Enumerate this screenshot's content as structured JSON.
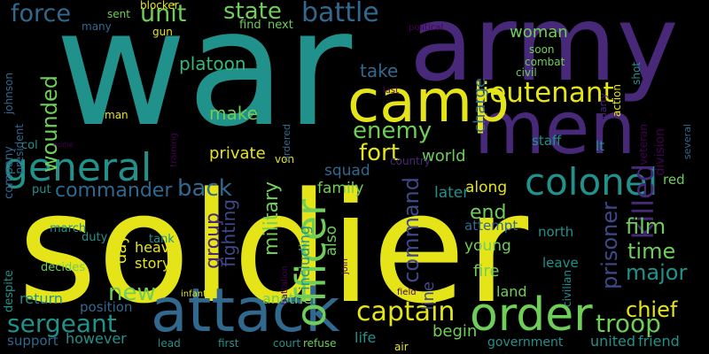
{
  "palette": {
    "yellow": "#e5e419",
    "teal": "#21918c",
    "purple": "#482878",
    "blue": "#31688e",
    "green": "#35b779",
    "lime": "#6ece58",
    "indigo": "#3e4989",
    "dark": "#440154"
  },
  "words": [
    {
      "text": "soldier",
      "color": "#e5e419"
    },
    {
      "text": "war",
      "color": "#21918c"
    },
    {
      "text": "army",
      "color": "#482878"
    },
    {
      "text": "men",
      "color": "#482878"
    },
    {
      "text": "camp",
      "color": "#e5e419"
    },
    {
      "text": "attack",
      "color": "#31688e"
    },
    {
      "text": "order",
      "color": "#6ece58"
    },
    {
      "text": "general",
      "color": "#21918c"
    },
    {
      "text": "officer",
      "color": "#6ece58"
    },
    {
      "text": "colonel",
      "color": "#21918c"
    },
    {
      "text": "lieutenant",
      "color": "#e5e419"
    },
    {
      "text": "killed",
      "color": "#482878"
    },
    {
      "text": "captain",
      "color": "#e5e419"
    },
    {
      "text": "troop",
      "color": "#6ece58"
    },
    {
      "text": "sergeant",
      "color": "#21918c"
    },
    {
      "text": "battle",
      "color": "#31688e"
    },
    {
      "text": "state",
      "color": "#6ece58"
    },
    {
      "text": "force",
      "color": "#31688e"
    },
    {
      "text": "unit",
      "color": "#6ece58"
    },
    {
      "text": "commander",
      "color": "#31688e"
    },
    {
      "text": "back",
      "color": "#31688e"
    },
    {
      "text": "enemy",
      "color": "#6ece58"
    },
    {
      "text": "fort",
      "color": "#e5e419"
    },
    {
      "text": "chief",
      "color": "#e5e419"
    },
    {
      "text": "major",
      "color": "#21918c"
    },
    {
      "text": "prisoner",
      "color": "#3e4989"
    },
    {
      "text": "command",
      "color": "#3e4989"
    },
    {
      "text": "military",
      "color": "#6ece58"
    },
    {
      "text": "group",
      "color": "#482878"
    },
    {
      "text": "fighting",
      "color": "#3e4989"
    },
    {
      "text": "film",
      "color": "#6ece58"
    },
    {
      "text": "time",
      "color": "#6ece58"
    },
    {
      "text": "end",
      "color": "#6ece58"
    },
    {
      "text": "new",
      "color": "#6ece58"
    },
    {
      "text": "wounded",
      "color": "#6ece58"
    },
    {
      "text": "platoon",
      "color": "#35b779"
    },
    {
      "text": "make",
      "color": "#6ece58"
    },
    {
      "text": "take",
      "color": "#31688e"
    },
    {
      "text": "private",
      "color": "#e5e419"
    },
    {
      "text": "woman",
      "color": "#6ece58"
    },
    {
      "text": "charge",
      "color": "#31688e"
    },
    {
      "text": "world",
      "color": "#6ece58"
    },
    {
      "text": "squad",
      "color": "#31688e"
    },
    {
      "text": "family",
      "color": "#6ece58"
    },
    {
      "text": "young",
      "color": "#6ece58"
    },
    {
      "text": "fire",
      "color": "#6ece58"
    },
    {
      "text": "line",
      "color": "#3e4989"
    },
    {
      "text": "begin",
      "color": "#6ece58"
    },
    {
      "text": "day",
      "color": "#e5e419"
    },
    {
      "text": "along",
      "color": "#e5e419"
    },
    {
      "text": "later",
      "color": "#21918c"
    },
    {
      "text": "another",
      "color": "#6ece58"
    },
    {
      "text": "return",
      "color": "#21918c"
    },
    {
      "text": "position",
      "color": "#31688e"
    },
    {
      "text": "however",
      "color": "#21918c"
    },
    {
      "text": "support",
      "color": "#31688e"
    },
    {
      "text": "heavy",
      "color": "#e5e419"
    },
    {
      "text": "story",
      "color": "#e5e419"
    },
    {
      "text": "life",
      "color": "#21918c"
    },
    {
      "text": "united",
      "color": "#21918c"
    },
    {
      "text": "friend",
      "color": "#21918c"
    },
    {
      "text": "government",
      "color": "#21918c"
    },
    {
      "text": "land",
      "color": "#6ece58"
    },
    {
      "text": "leave",
      "color": "#21918c"
    },
    {
      "text": "north",
      "color": "#21918c"
    },
    {
      "text": "attempt",
      "color": "#31688e"
    },
    {
      "text": "including",
      "color": "#21918c"
    },
    {
      "text": "also",
      "color": "#6ece58"
    },
    {
      "text": "staff",
      "color": "#21918c"
    },
    {
      "text": "lt",
      "color": "#21918c"
    },
    {
      "text": "red",
      "color": "#6ece58"
    },
    {
      "text": "division",
      "color": "#440154"
    },
    {
      "text": "veteran",
      "color": "#440154"
    },
    {
      "text": "civilian",
      "color": "#21918c"
    },
    {
      "text": "duty",
      "color": "#21918c"
    },
    {
      "text": "march",
      "color": "#21918c"
    },
    {
      "text": "tank",
      "color": "#21918c"
    },
    {
      "text": "decides",
      "color": "#6ece58"
    },
    {
      "text": "despite",
      "color": "#21918c"
    },
    {
      "text": "put",
      "color": "#21918c"
    },
    {
      "text": "col",
      "color": "#21918c"
    },
    {
      "text": "company",
      "color": "#31688e"
    },
    {
      "text": "man",
      "color": "#e5e419"
    },
    {
      "text": "president",
      "color": "#31688e"
    },
    {
      "text": "johnson",
      "color": "#31688e"
    },
    {
      "text": "sent",
      "color": "#6ece58"
    },
    {
      "text": "many",
      "color": "#31688e"
    },
    {
      "text": "blocker",
      "color": "#e5e419"
    },
    {
      "text": "gun",
      "color": "#e5e419"
    },
    {
      "text": "find",
      "color": "#6ece58"
    },
    {
      "text": "next",
      "color": "#6ece58"
    },
    {
      "text": "soon",
      "color": "#6ece58"
    },
    {
      "text": "combat",
      "color": "#6ece58"
    },
    {
      "text": "civil",
      "color": "#6ece58"
    },
    {
      "text": "action",
      "color": "#e5e419"
    },
    {
      "text": "party",
      "color": "#482878"
    },
    {
      "text": "shot",
      "color": "#21918c"
    },
    {
      "text": "several",
      "color": "#31688e"
    },
    {
      "text": "court",
      "color": "#21918c"
    },
    {
      "text": "refuse",
      "color": "#6ece58"
    },
    {
      "text": "lead",
      "color": "#21918c"
    },
    {
      "text": "first",
      "color": "#21918c"
    },
    {
      "text": "air",
      "color": "#e5e419"
    },
    {
      "text": "von",
      "color": "#e5e419"
    },
    {
      "text": "country",
      "color": "#482878"
    },
    {
      "text": "ordered",
      "color": "#31688e"
    },
    {
      "text": "infantry",
      "color": "#e5e419"
    },
    {
      "text": "political",
      "color": "#440154"
    },
    {
      "text": "home",
      "color": "#440154"
    },
    {
      "text": "training",
      "color": "#440154"
    },
    {
      "text": "last",
      "color": "#440154"
    },
    {
      "text": "battalion",
      "color": "#440154"
    },
    {
      "text": "join",
      "color": "#440154"
    },
    {
      "text": "field",
      "color": "#440154"
    }
  ]
}
